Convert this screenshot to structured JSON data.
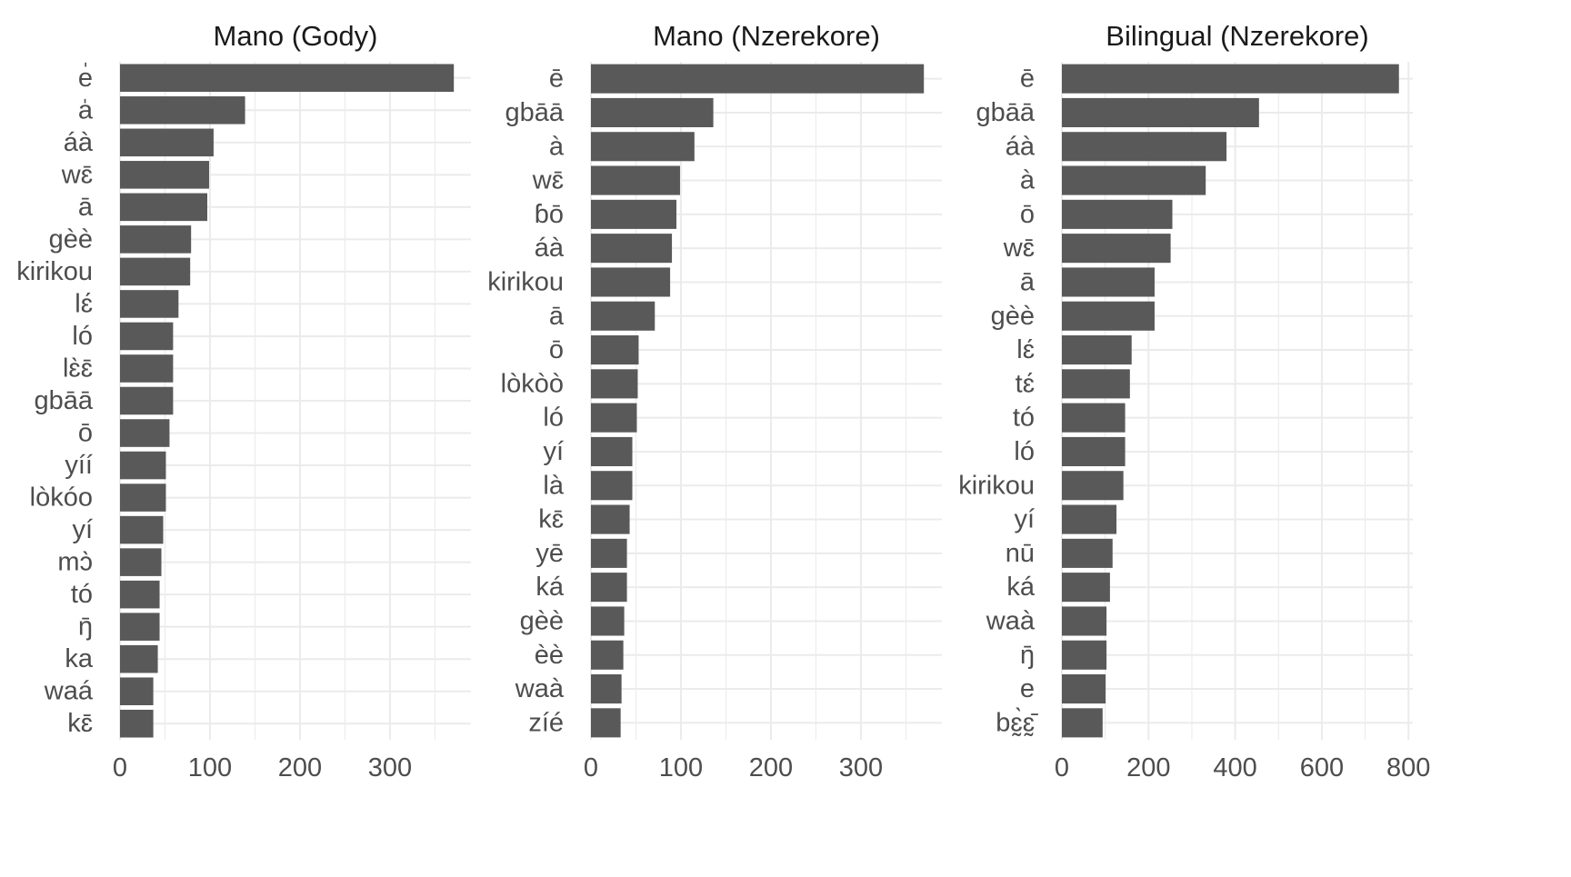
{
  "chart_data": [
    {
      "type": "bar",
      "orientation": "horizontal",
      "title": "Mano (Gody)",
      "xlabel": "",
      "ylabel": "",
      "xlim": [
        0,
        390
      ],
      "xticks": [
        0,
        100,
        200,
        300
      ],
      "grid": true,
      "categories": [
        "e̍",
        "a̍",
        "áà",
        "wɛ̄",
        "ā",
        "gèè",
        "kirikou",
        "lɛ́",
        "ló",
        "lɛ̀ɛ̄",
        "gbāā",
        "ō",
        "yíí",
        "lòkóo",
        "yí",
        "mɔ̀",
        "tó",
        "ŋ̄",
        "ka",
        "waá",
        "kɛ̄"
      ],
      "values": [
        371,
        139,
        104,
        99,
        97,
        79,
        78,
        65,
        59,
        59,
        59,
        55,
        51,
        51,
        48,
        46,
        44,
        44,
        42,
        37,
        37
      ]
    },
    {
      "type": "bar",
      "orientation": "horizontal",
      "title": "Mano (Nzerekore)",
      "xlabel": "",
      "ylabel": "",
      "xlim": [
        0,
        390
      ],
      "xticks": [
        0,
        100,
        200,
        300
      ],
      "grid": true,
      "categories": [
        "ē",
        "gbāā",
        "à",
        "wɛ̄",
        "ɓō",
        "áà",
        "kirikou",
        "ā",
        "ō",
        "lòkòò",
        "ló",
        "yí",
        "là",
        "kɛ̄",
        "yē",
        "ká",
        "gèè",
        "èè",
        "waà",
        "zíé"
      ],
      "values": [
        370,
        136,
        115,
        99,
        95,
        90,
        88,
        71,
        53,
        52,
        51,
        46,
        46,
        43,
        40,
        40,
        37,
        36,
        34,
        33
      ]
    },
    {
      "type": "bar",
      "orientation": "horizontal",
      "title": "Bilingual (Nzerekore)",
      "xlabel": "",
      "ylabel": "",
      "xlim": [
        0,
        810
      ],
      "xticks": [
        0,
        200,
        400,
        600,
        800
      ],
      "grid": true,
      "categories": [
        "ē",
        "gbāā",
        "áà",
        "à",
        "ō",
        "wɛ̄",
        "ā",
        "gèè",
        "lɛ́",
        "tɛ́",
        "tó",
        "ló",
        "kirikou",
        "yí",
        "nū",
        "ká",
        "waà",
        "ŋ̄",
        "e",
        "bɛ̰̀ɛ̰̄"
      ],
      "values": [
        778,
        455,
        380,
        332,
        255,
        251,
        214,
        214,
        161,
        157,
        146,
        146,
        142,
        126,
        117,
        111,
        103,
        103,
        101,
        94
      ]
    }
  ]
}
